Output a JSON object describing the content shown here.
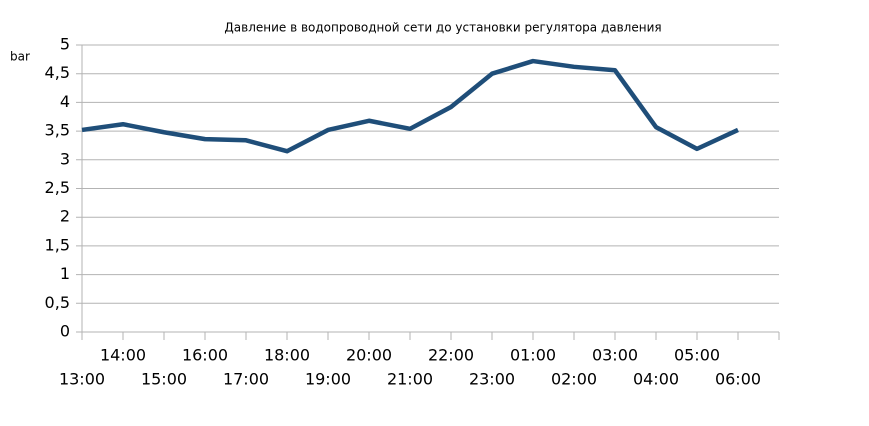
{
  "chart_data": {
    "type": "line",
    "title": "Давление в водопроводной сети до установки регулятора давления",
    "y_label": "bar",
    "categories": [
      "13:00",
      "14:00",
      "15:00",
      "16:00",
      "17:00",
      "18:00",
      "19:00",
      "20:00",
      "21:00",
      "22:00",
      "23:00",
      "01:00",
      "02:00",
      "03:00",
      "04:00",
      "05:00",
      "06:00"
    ],
    "values": [
      3.52,
      3.62,
      3.48,
      3.36,
      3.34,
      3.15,
      3.52,
      3.68,
      3.54,
      3.92,
      4.5,
      4.72,
      4.62,
      4.56,
      3.57,
      3.19,
      3.52
    ],
    "color": "#1f4e79",
    "ylim": [
      0,
      5
    ],
    "yticks": [
      0,
      {
        "value": 0.5,
        "label": "0,5"
      },
      1,
      {
        "value": 1.5,
        "label": "1,5"
      },
      2,
      {
        "value": 2.5,
        "label": "2,5"
      },
      3,
      {
        "value": 3.5,
        "label": "3,5"
      },
      4,
      {
        "value": 4.5,
        "label": "4,5"
      },
      5
    ],
    "grid": true
  }
}
